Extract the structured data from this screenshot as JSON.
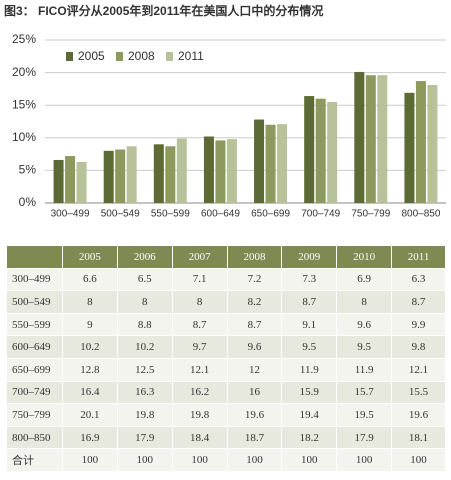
{
  "chart_data": {
    "type": "bar",
    "title": "图3： FICO评分从2005年到2011年在美国人口中的分布情况",
    "categories": [
      "300–499",
      "500–549",
      "550–599",
      "600–649",
      "650–699",
      "700–749",
      "750–799",
      "800–850"
    ],
    "series": [
      {
        "name": "2005",
        "color": "#5c6a35",
        "values": [
          6.6,
          8,
          9,
          10.2,
          12.8,
          16.4,
          20.1,
          16.9
        ]
      },
      {
        "name": "2008",
        "color": "#8c9a5e",
        "values": [
          7.2,
          8.2,
          8.7,
          9.6,
          12,
          16,
          19.6,
          18.7
        ]
      },
      {
        "name": "2011",
        "color": "#b8c29a",
        "values": [
          6.3,
          8.7,
          9.9,
          9.8,
          12.1,
          15.5,
          19.6,
          18.1
        ]
      }
    ],
    "ylim": [
      0,
      25
    ],
    "yticks": [
      {
        "value": 0,
        "label": "0%"
      },
      {
        "value": 5,
        "label": "5%"
      },
      {
        "value": 10,
        "label": "10%"
      },
      {
        "value": 15,
        "label": "15%"
      },
      {
        "value": 20,
        "label": "20%"
      },
      {
        "value": 25,
        "label": "25%"
      }
    ],
    "grid": true,
    "legend": "top-left"
  },
  "table": {
    "header": [
      "2005",
      "2006",
      "2007",
      "2008",
      "2009",
      "2010",
      "2011"
    ],
    "rows": [
      [
        "300–499",
        "6.6",
        "6.5",
        "7.1",
        "7.2",
        "7.3",
        "6.9",
        "6.3"
      ],
      [
        "500–549",
        "8",
        "8",
        "8",
        "8.2",
        "8.7",
        "8",
        "8.7"
      ],
      [
        "550–599",
        "9",
        "8.8",
        "8.7",
        "8.7",
        "9.1",
        "9.6",
        "9.9"
      ],
      [
        "600–649",
        "10.2",
        "10.2",
        "9.7",
        "9.6",
        "9.5",
        "9.5",
        "9.8"
      ],
      [
        "650–699",
        "12.8",
        "12.5",
        "12.1",
        "12",
        "11.9",
        "11.9",
        "12.1"
      ],
      [
        "700–749",
        "16.4",
        "16.3",
        "16.2",
        "16",
        "15.9",
        "15.7",
        "15.5"
      ],
      [
        "750–799",
        "20.1",
        "19.8",
        "19.8",
        "19.6",
        "19.4",
        "19.5",
        "19.6"
      ],
      [
        "800–850",
        "16.9",
        "17.9",
        "18.4",
        "18.7",
        "18.2",
        "17.9",
        "18.1"
      ],
      [
        "合计",
        "100",
        "100",
        "100",
        "100",
        "100",
        "100",
        "100"
      ]
    ]
  }
}
